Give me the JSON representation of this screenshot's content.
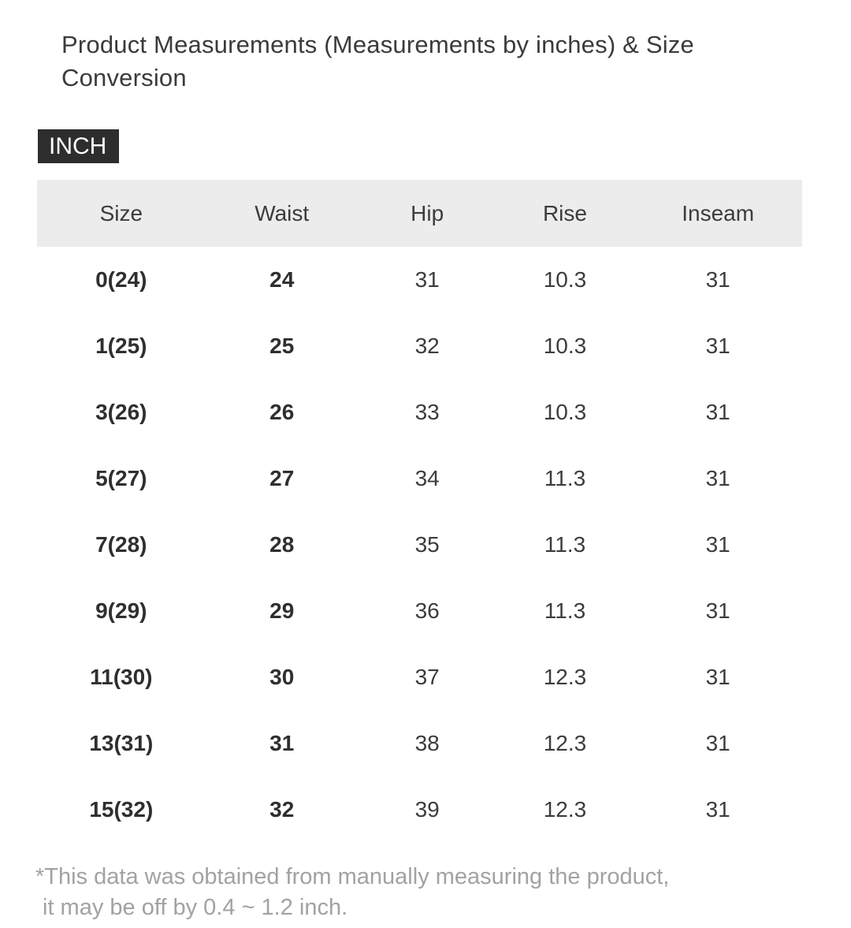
{
  "page": {
    "title": "Product Measurements (Measurements by inches) & Size Conversion",
    "unit_badge": "INCH",
    "footnote_line1": "*This data was obtained from manually measuring the product,",
    "footnote_line2": "it may be off by 0.4 ~ 1.2 inch."
  },
  "table": {
    "columns": [
      "Size",
      "Waist",
      "Hip",
      "Rise",
      "Inseam"
    ],
    "rows": [
      [
        "0(24)",
        "24",
        "31",
        "10.3",
        "31"
      ],
      [
        "1(25)",
        "25",
        "32",
        "10.3",
        "31"
      ],
      [
        "3(26)",
        "26",
        "33",
        "10.3",
        "31"
      ],
      [
        "5(27)",
        "27",
        "34",
        "11.3",
        "31"
      ],
      [
        "7(28)",
        "28",
        "35",
        "11.3",
        "31"
      ],
      [
        "9(29)",
        "29",
        "36",
        "11.3",
        "31"
      ],
      [
        "11(30)",
        "30",
        "37",
        "12.3",
        "31"
      ],
      [
        "13(31)",
        "31",
        "38",
        "12.3",
        "31"
      ],
      [
        "15(32)",
        "32",
        "39",
        "12.3",
        "31"
      ]
    ]
  },
  "colors": {
    "badge_bg": "#2d2d2d",
    "badge_text": "#ffffff",
    "header_bg": "#ececec",
    "text_dark": "#3c3c3c",
    "footnote_gray": "#a2a2a2"
  }
}
